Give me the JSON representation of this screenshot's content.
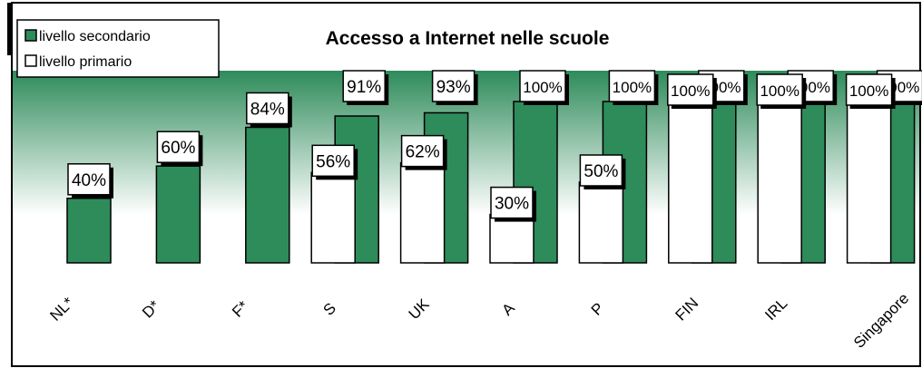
{
  "chart_data": {
    "type": "bar",
    "title": "Accesso a Internet nelle scuole",
    "categories": [
      "NL*",
      "D*",
      "F*",
      "S",
      "UK",
      "A",
      "P",
      "FIN",
      "IRL",
      "Singapore"
    ],
    "series": [
      {
        "name": "livello secondario",
        "color": "#2e8b5a",
        "values": [
          40,
          60,
          84,
          91,
          93,
          100,
          100,
          100,
          100,
          100
        ]
      },
      {
        "name": "livello primario",
        "color": "#ffffff",
        "values": [
          null,
          null,
          null,
          56,
          62,
          30,
          50,
          100,
          100,
          100
        ]
      }
    ],
    "value_suffix": "%",
    "ylim": [
      0,
      100
    ],
    "legend": "top-left",
    "background_gradient": [
      "#2e8b5a",
      "#ffffff"
    ]
  }
}
